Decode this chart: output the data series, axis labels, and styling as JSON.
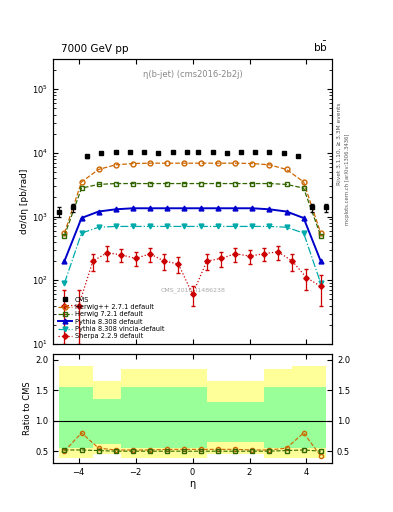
{
  "title_left": "7000 GeV pp",
  "title_right": "b$\\mathregular{\\bar{b}}$",
  "obs_label": "η(b-jet) (cms2016-2b2j)",
  "watermark": "CMS_2016_I1486238",
  "rivet_label": "Rivet 3.1.10, ≥ 3.3M events",
  "arxiv_label": "mcplots.cern.ch [arXiv:1306.3436]",
  "ylabel_main": "dσ/dη [pb/rad]",
  "ylabel_ratio": "Ratio to CMS",
  "xlabel": "η",
  "cms_eta": [
    -4.7,
    -4.2,
    -3.7,
    -3.2,
    -2.7,
    -2.2,
    -1.7,
    -1.2,
    -0.7,
    -0.2,
    0.2,
    0.7,
    1.2,
    1.7,
    2.2,
    2.7,
    3.2,
    3.7,
    4.2,
    4.7
  ],
  "cms_y": [
    1200,
    1400,
    8800,
    10000,
    10200,
    10500,
    10200,
    10000,
    10200,
    10300,
    10400,
    10200,
    10100,
    10200,
    10500,
    10200,
    10100,
    8900,
    1400,
    1400
  ],
  "cms_yerr": [
    200,
    200,
    400,
    400,
    400,
    400,
    400,
    400,
    400,
    400,
    400,
    400,
    400,
    400,
    400,
    400,
    400,
    400,
    200,
    200
  ],
  "herwig271_eta": [
    -4.5,
    -3.9,
    -3.3,
    -2.7,
    -2.1,
    -1.5,
    -0.9,
    -0.3,
    0.3,
    0.9,
    1.5,
    2.1,
    2.7,
    3.3,
    3.9,
    4.5
  ],
  "herwig271_y": [
    550,
    3500,
    5500,
    6500,
    6800,
    6900,
    6900,
    6900,
    6900,
    6900,
    6900,
    6800,
    6500,
    5500,
    3500,
    550
  ],
  "herwig721_eta": [
    -4.5,
    -3.9,
    -3.3,
    -2.7,
    -2.1,
    -1.5,
    -0.9,
    -0.3,
    0.3,
    0.9,
    1.5,
    2.1,
    2.7,
    3.3,
    3.9,
    4.5
  ],
  "herwig721_y": [
    500,
    2800,
    3200,
    3300,
    3300,
    3300,
    3300,
    3300,
    3300,
    3300,
    3300,
    3300,
    3300,
    3200,
    2800,
    500
  ],
  "pythia8_eta": [
    -4.5,
    -3.9,
    -3.3,
    -2.7,
    -2.1,
    -1.5,
    -0.9,
    -0.3,
    0.3,
    0.9,
    1.5,
    2.1,
    2.7,
    3.3,
    3.9,
    4.5
  ],
  "pythia8_y": [
    200,
    950,
    1200,
    1300,
    1350,
    1350,
    1350,
    1350,
    1350,
    1350,
    1350,
    1350,
    1300,
    1200,
    950,
    200
  ],
  "vinc_eta": [
    -4.5,
    -3.9,
    -3.3,
    -2.7,
    -2.1,
    -1.5,
    -0.9,
    -0.3,
    0.3,
    0.9,
    1.5,
    2.1,
    2.7,
    3.3,
    3.9,
    4.5
  ],
  "vinc_y": [
    90,
    550,
    680,
    700,
    700,
    700,
    700,
    700,
    700,
    700,
    700,
    700,
    700,
    680,
    550,
    90
  ],
  "sherpa_eta": [
    -4.5,
    -4.0,
    -3.5,
    -3.0,
    -2.5,
    -2.0,
    -1.5,
    -1.0,
    -0.5,
    0.0,
    0.5,
    1.0,
    1.5,
    2.0,
    2.5,
    3.0,
    3.5,
    4.0,
    4.5
  ],
  "sherpa_y": [
    40,
    40,
    200,
    270,
    250,
    220,
    260,
    200,
    180,
    60,
    200,
    220,
    260,
    240,
    260,
    280,
    200,
    110,
    80
  ],
  "sherpa_yerr": [
    30,
    30,
    60,
    70,
    60,
    55,
    65,
    55,
    50,
    20,
    55,
    60,
    65,
    60,
    60,
    70,
    60,
    40,
    40
  ],
  "ratio_band_x": [
    -4.7,
    -3.5,
    -3.5,
    -2.5,
    -2.5,
    0.5,
    0.5,
    1.5,
    1.5,
    2.5,
    2.5,
    3.5,
    3.5,
    4.7
  ],
  "ratio_yellow_hi": [
    1.9,
    1.9,
    1.65,
    1.65,
    1.85,
    1.85,
    1.65,
    1.65,
    1.65,
    1.65,
    1.85,
    1.85,
    1.9,
    1.9
  ],
  "ratio_yellow_lo": [
    0.38,
    0.38,
    0.45,
    0.45,
    0.38,
    0.38,
    0.45,
    0.45,
    0.45,
    0.45,
    0.38,
    0.38,
    0.38,
    0.38
  ],
  "ratio_green_hi": [
    1.55,
    1.55,
    1.35,
    1.35,
    1.55,
    1.55,
    1.3,
    1.3,
    1.3,
    1.3,
    1.55,
    1.55,
    1.55,
    1.55
  ],
  "ratio_green_lo": [
    0.55,
    0.55,
    0.62,
    0.62,
    0.55,
    0.55,
    0.65,
    0.65,
    0.65,
    0.65,
    0.55,
    0.55,
    0.55,
    0.55
  ],
  "ratio_herwig271_eta": [
    -4.5,
    -3.9,
    -3.3,
    -2.7,
    -2.1,
    -1.5,
    -0.9,
    -0.3,
    0.3,
    0.9,
    1.5,
    2.1,
    2.7,
    3.3,
    3.9,
    4.5
  ],
  "ratio_herwig271_y": [
    0.5,
    0.8,
    0.55,
    0.52,
    0.52,
    0.52,
    0.53,
    0.53,
    0.53,
    0.53,
    0.53,
    0.52,
    0.52,
    0.55,
    0.8,
    0.42
  ],
  "ratio_herwig721_eta": [
    -4.5,
    -3.9,
    -3.3,
    -2.7,
    -2.1,
    -1.5,
    -0.9,
    -0.3,
    0.3,
    0.9,
    1.5,
    2.1,
    2.7,
    3.3,
    3.9,
    4.5
  ],
  "ratio_herwig721_y": [
    0.52,
    0.52,
    0.51,
    0.5,
    0.5,
    0.5,
    0.5,
    0.5,
    0.5,
    0.5,
    0.5,
    0.5,
    0.5,
    0.51,
    0.52,
    0.5
  ],
  "color_cms": "#000000",
  "color_herwig271": "#cc6600",
  "color_herwig721": "#336600",
  "color_pythia8": "#0000cc",
  "color_vinc": "#00aaaa",
  "color_sherpa": "#cc0000",
  "ylim_main": [
    10,
    300000
  ],
  "ylim_ratio": [
    0.3,
    2.1
  ],
  "xlim": [
    -4.9,
    4.9
  ]
}
